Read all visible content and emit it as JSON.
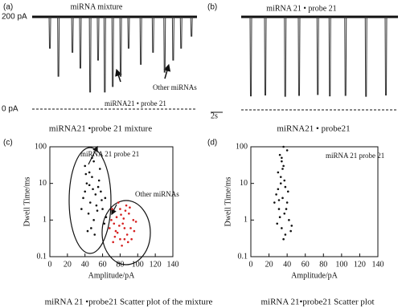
{
  "chart_data": [
    {
      "type": "trace",
      "panel": "(a)",
      "title": "miRNA mixture",
      "xlim": [
        0,
        27
      ],
      "ylim": [
        0,
        200
      ],
      "yticks": [
        {
          "value": 200,
          "label": "200 pA"
        },
        {
          "value": 0,
          "label": "0 pA"
        }
      ],
      "x": [
        2.9,
        4.3,
        6.6,
        7.9,
        9.5,
        10.8,
        11.9,
        13.2,
        14.5,
        15.8,
        17.8,
        19.8,
        21.7,
        23.1,
        24.4,
        26.1
      ],
      "values": [
        132,
        71,
        123,
        89,
        37,
        106,
        37,
        49,
        71,
        132,
        97,
        123,
        80,
        106,
        132,
        158
      ],
      "annotations": [
        "miRNA21 • probe 21",
        "Other miRNAs"
      ],
      "caption": "miRNA21 •probe 21 mixture"
    },
    {
      "type": "trace",
      "panel": "(b)",
      "title": "miRNA 21 • probe 21",
      "xlim": [
        0,
        26
      ],
      "ylim": [
        0,
        200
      ],
      "x": [
        1.6,
        4.0,
        7.3,
        9.6,
        12.7,
        14.7,
        17.3,
        20.7,
        24.0
      ],
      "values": [
        30,
        32,
        29,
        31,
        33,
        30,
        31,
        29,
        32
      ],
      "scalebar": {
        "value": 2,
        "label": "2s"
      },
      "caption": "miRNA21 • probe21"
    },
    {
      "type": "scatter",
      "panel": "(c)",
      "xlabel": "Amplitude/pA",
      "ylabel": "Dwell Time/ms",
      "xlim": [
        0,
        140
      ],
      "xticks": [
        0,
        20,
        40,
        60,
        80,
        100,
        120,
        140
      ],
      "ylim": [
        0.1,
        100
      ],
      "yticks": [
        0.1,
        1,
        10,
        100
      ],
      "log_y": true,
      "series": [
        {
          "color": "#111111",
          "x": [
            40,
            45,
            48,
            50,
            42,
            55,
            52,
            46,
            60,
            58,
            38,
            44,
            50,
            62,
            47,
            53,
            56,
            41,
            49,
            64,
            36,
            43,
            57,
            51,
            45,
            59,
            54,
            48,
            63,
            40
          ],
          "values": [
            30,
            20,
            15,
            40,
            10,
            8,
            5,
            3,
            2,
            6,
            4,
            1.5,
            1,
            0.8,
            0.6,
            2.5,
            12,
            18,
            7,
            1.2,
            2,
            0.5,
            25,
            0.4,
            9,
            3.5,
            1.8,
            50,
            4,
            6
          ]
        },
        {
          "color": "#d62020",
          "x": [
            70,
            75,
            80,
            85,
            90,
            72,
            78,
            83,
            88,
            95,
            68,
            76,
            82,
            87,
            92,
            74,
            79,
            86,
            93,
            98,
            71,
            84,
            89,
            77,
            81,
            96,
            73,
            91,
            85,
            80
          ],
          "values": [
            1,
            0.5,
            2,
            0.3,
            1.5,
            0.25,
            3,
            0.8,
            0.4,
            1,
            0.6,
            1.2,
            0.2,
            2.5,
            0.6,
            0.35,
            0.7,
            1.8,
            0.3,
            0.9,
            2,
            1.1,
            0.25,
            0.45,
            1.4,
            0.5,
            0.8,
            2.2,
            0.6,
            0.3
          ]
        }
      ],
      "annotations": [
        "miRNA 21 probe 21",
        "Other miRNAs"
      ],
      "caption": "miRNA 21 •probe21  Scatter plot of the mixture"
    },
    {
      "type": "scatter",
      "panel": "(d)",
      "xlabel": "Amplitude/pA",
      "ylabel": "Dwell Time/ms",
      "xlim": [
        0,
        140
      ],
      "xticks": [
        0,
        20,
        40,
        60,
        80,
        100,
        120,
        140
      ],
      "ylim": [
        0.1,
        100
      ],
      "yticks": [
        0.1,
        1,
        10,
        100
      ],
      "log_y": true,
      "series": [
        {
          "color": "#111111",
          "x": [
            32,
            34,
            30,
            36,
            33,
            38,
            28,
            35,
            40,
            31,
            37,
            42,
            29,
            34,
            39,
            44,
            33,
            35,
            30,
            37,
            41,
            26,
            36,
            45,
            32,
            38,
            34,
            40,
            36,
            31
          ],
          "values": [
            60,
            40,
            20,
            30,
            10,
            8,
            5,
            4,
            3,
            2,
            1.5,
            1,
            0.8,
            0.6,
            2,
            0.5,
            15,
            25,
            7,
            12,
            6,
            3,
            0.3,
            0.7,
            1.2,
            0.4,
            50,
            80,
            100,
            3.5
          ]
        }
      ],
      "annotations": [
        "miRNA 21 probe 21"
      ],
      "caption": "miRNA 21•probe21 Scatter plot"
    }
  ]
}
